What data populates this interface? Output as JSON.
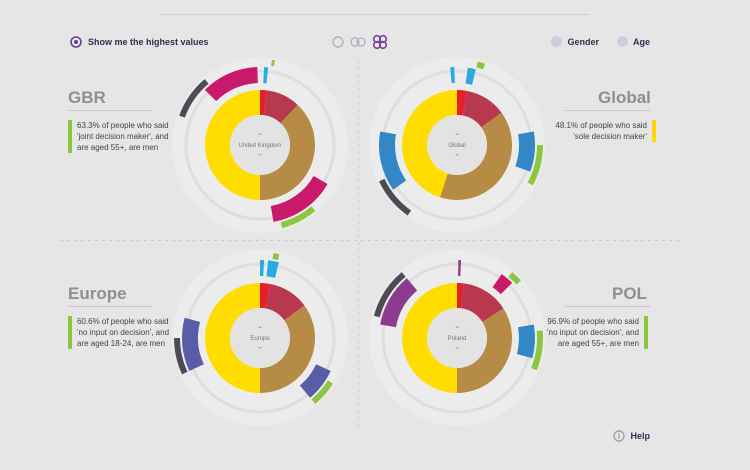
{
  "toolbar": {
    "highest_label": "Show me the highest values",
    "gender_label": "Gender",
    "age_label": "Age",
    "help_label": "Help"
  },
  "colors": {
    "red": "#e5202a",
    "crimson": "#b8384f",
    "tan": "#b58b45",
    "yellow": "#ffdd00",
    "magenta": "#c8196a",
    "blue": "#3487c6",
    "cyan": "#29abe2",
    "green": "#8cc63f",
    "purple": "#8c3b8f",
    "slate": "#5b5ca8",
    "dark": "#4d4b53"
  },
  "panels": [
    {
      "title": "GBR",
      "center_label": "United Kingdom",
      "description": "63.3% of people who said 'joint decision maker', and are aged 55+, are men",
      "chart_data": {
        "type": "pie",
        "inner": [
          {
            "color": "red",
            "value": 2
          },
          {
            "color": "crimson",
            "value": 10
          },
          {
            "color": "tan",
            "value": 38
          },
          {
            "color": "yellow",
            "value": 50
          }
        ],
        "outer": [
          {
            "color": "dark",
            "start": 290,
            "end": 320
          },
          {
            "color": "magenta",
            "start": 315,
            "end": 358
          },
          {
            "color": "cyan",
            "start": 3,
            "end": 6
          },
          {
            "color": "green",
            "start": 8,
            "end": 10
          },
          {
            "color": "magenta",
            "start": 120,
            "end": 170
          },
          {
            "color": "green",
            "start": 140,
            "end": 165
          }
        ]
      }
    },
    {
      "title": "Global",
      "center_label": "Global",
      "description": "48.1% of people who said 'sole decision maker'",
      "chart_data": {
        "type": "pie",
        "inner": [
          {
            "color": "red",
            "value": 3
          },
          {
            "color": "crimson",
            "value": 12
          },
          {
            "color": "tan",
            "value": 40
          },
          {
            "color": "yellow",
            "value": 45
          }
        ],
        "outer": [
          {
            "color": "blue",
            "start": 235,
            "end": 280
          },
          {
            "color": "dark",
            "start": 215,
            "end": 245
          },
          {
            "color": "cyan",
            "start": 355,
            "end": 358
          },
          {
            "color": "cyan",
            "start": 8,
            "end": 14
          },
          {
            "color": "green",
            "start": 14,
            "end": 19
          },
          {
            "color": "blue",
            "start": 80,
            "end": 110
          },
          {
            "color": "green",
            "start": 90,
            "end": 118
          }
        ]
      }
    },
    {
      "title": "Europe",
      "center_label": "Europe",
      "description": "60.6% of people who said 'no input on decision', and are aged 18-24, are men",
      "chart_data": {
        "type": "pie",
        "inner": [
          {
            "color": "red",
            "value": 3
          },
          {
            "color": "crimson",
            "value": 12
          },
          {
            "color": "tan",
            "value": 35
          },
          {
            "color": "yellow",
            "value": 50
          }
        ],
        "outer": [
          {
            "color": "slate",
            "start": 245,
            "end": 285
          },
          {
            "color": "dark",
            "start": 245,
            "end": 270
          },
          {
            "color": "cyan",
            "start": 0,
            "end": 3
          },
          {
            "color": "cyan",
            "start": 6,
            "end": 14
          },
          {
            "color": "green",
            "start": 9,
            "end": 13
          },
          {
            "color": "slate",
            "start": 115,
            "end": 140
          },
          {
            "color": "green",
            "start": 122,
            "end": 140
          }
        ]
      }
    },
    {
      "title": "POL",
      "center_label": "Poland",
      "description": "96.9% of people who said 'no input on decision', and are aged 55+, are men",
      "chart_data": {
        "type": "pie",
        "inner": [
          {
            "color": "red",
            "value": 2
          },
          {
            "color": "crimson",
            "value": 14
          },
          {
            "color": "tan",
            "value": 34
          },
          {
            "color": "yellow",
            "value": 50
          }
        ],
        "outer": [
          {
            "color": "purple",
            "start": 280,
            "end": 320
          },
          {
            "color": "dark",
            "start": 285,
            "end": 320
          },
          {
            "color": "purple",
            "start": 1,
            "end": 3
          },
          {
            "color": "magenta",
            "start": 35,
            "end": 45
          },
          {
            "color": "green",
            "start": 40,
            "end": 48
          },
          {
            "color": "blue",
            "start": 80,
            "end": 105
          },
          {
            "color": "green",
            "start": 85,
            "end": 112
          }
        ]
      }
    }
  ]
}
